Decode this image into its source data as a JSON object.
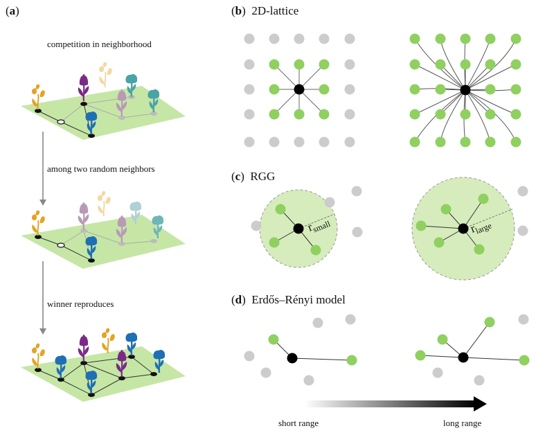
{
  "panel_a": {
    "label": "a",
    "captions": [
      "competition in neighborhood",
      "among two random neighbors",
      "winner reproduces"
    ]
  },
  "panel_b": {
    "label": "b",
    "title": "2D-lattice"
  },
  "panel_c": {
    "label": "c",
    "title": "RGG",
    "r_symbol": "r",
    "r_small": "small",
    "r_large": "large"
  },
  "panel_d": {
    "label": "d",
    "title": "Erdős–Rényi model"
  },
  "range_axis": {
    "left": "short range",
    "right": "long range"
  },
  "colors": {
    "node_gray": "#cccccc",
    "node_green": "#8fd060",
    "center": "#000000",
    "edge": "#555555",
    "disk_fill": "#d6ecbc",
    "ground": "#c6e6a6",
    "flower_orange": "#e3a324",
    "flower_purple": "#7a2b86",
    "flower_blue": "#1f6fb4",
    "flower_teal": "#4aa3a8"
  }
}
